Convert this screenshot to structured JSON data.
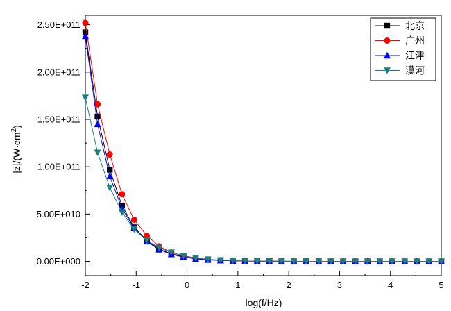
{
  "chart_data": {
    "type": "line",
    "xlabel": "log(f/Hz)",
    "ylabel_main": "|z|/(W·cm",
    "ylabel_sup": "2",
    "ylabel_close": ")",
    "xlim": [
      -2,
      5
    ],
    "ylim": [
      -15000000000.0,
      260000000000.0
    ],
    "x_ticks": [
      -2,
      -1,
      0,
      1,
      2,
      3,
      4,
      5
    ],
    "x_tick_labels": [
      "-2",
      "-1",
      "0",
      "1",
      "2",
      "3",
      "4",
      "5"
    ],
    "y_ticks": [
      0,
      50000000000.0,
      100000000000.0,
      150000000000.0,
      200000000000.0,
      250000000000.0
    ],
    "y_tick_labels": [
      "0.00E+000",
      "5.00E+010",
      "1.00E+011",
      "1.50E+011",
      "2.00E+011",
      "2.50E+011"
    ],
    "legend_position": "top-right",
    "x": [
      -2.0,
      -1.76,
      -1.52,
      -1.28,
      -1.04,
      -0.79,
      -0.55,
      -0.31,
      -0.07,
      0.17,
      0.41,
      0.66,
      0.9,
      1.14,
      1.38,
      1.62,
      1.86,
      2.1,
      2.34,
      2.59,
      2.83,
      3.07,
      3.31,
      3.55,
      3.79,
      4.03,
      4.28,
      4.52,
      4.76,
      5.0
    ],
    "series": [
      {
        "name": "北京",
        "color": "#000000",
        "marker": "square",
        "values": [
          242000000000.0,
          153000000000.0,
          97000000000.0,
          59000000000.0,
          36000000000.0,
          22000000000.0,
          13000000000.0,
          8000000000.0,
          5000000000.0,
          3000000000.0,
          1800000000.0,
          1100000000.0,
          700000000.0,
          400000000.0,
          250000000.0,
          150000000.0,
          100000000.0,
          60000000.0,
          40000000.0,
          25000000.0,
          15000000.0,
          10000000.0,
          6000000.0,
          4000000.0,
          2500000.0,
          1500000.0,
          1000000.0,
          600000.0,
          400000.0,
          250000.0
        ]
      },
      {
        "name": "广州",
        "color": "#ff0000",
        "marker": "circle",
        "values": [
          252000000000.0,
          166000000000.0,
          113000000000.0,
          71000000000.0,
          44000000000.0,
          27000000000.0,
          16000000000.0,
          9500000000.0,
          5500000000.0,
          3200000000.0,
          1900000000.0,
          1100000000.0,
          700000000.0,
          400000000.0,
          250000000.0,
          150000000.0,
          100000000.0,
          60000000.0,
          40000000.0,
          25000000.0,
          15000000.0,
          10000000.0,
          6000000.0,
          4000000.0,
          2500000.0,
          1500000.0,
          1000000.0,
          600000.0,
          400000.0,
          250000.0
        ]
      },
      {
        "name": "江津",
        "color": "#0000ff",
        "marker": "triangle-up",
        "values": [
          238000000000.0,
          145000000000.0,
          90000000000.0,
          56000000000.0,
          35000000000.0,
          21000000000.0,
          12500000000.0,
          7500000000.0,
          4500000000.0,
          2700000000.0,
          1600000000.0,
          1000000000.0,
          600000000.0,
          350000000.0,
          210000000.0,
          130000000.0,
          80000000.0,
          50000000.0,
          30000000.0,
          20000000.0,
          12000000.0,
          8000000.0,
          5000000.0,
          3000000.0,
          2000000.0,
          1200000.0,
          800000.0,
          500000.0,
          300000.0,
          200000.0
        ]
      },
      {
        "name": "漠河",
        "color": "#1a7f7f",
        "marker": "triangle-down",
        "values": [
          173000000000.0,
          115000000000.0,
          78000000000.0,
          52000000000.0,
          34000000000.0,
          22000000000.0,
          14500000000.0,
          9500000000.0,
          6000000000.0,
          3700000000.0,
          2200000000.0,
          1300000000.0,
          800000000.0,
          500000000.0,
          300000000.0,
          180000000.0,
          110000000.0,
          70000000.0,
          40000000.0,
          25000000.0,
          15000000.0,
          10000000.0,
          6000000.0,
          4000000.0,
          2500000.0,
          1500000.0,
          1000000.0,
          600000.0,
          400000.0,
          250000.0
        ]
      }
    ]
  }
}
